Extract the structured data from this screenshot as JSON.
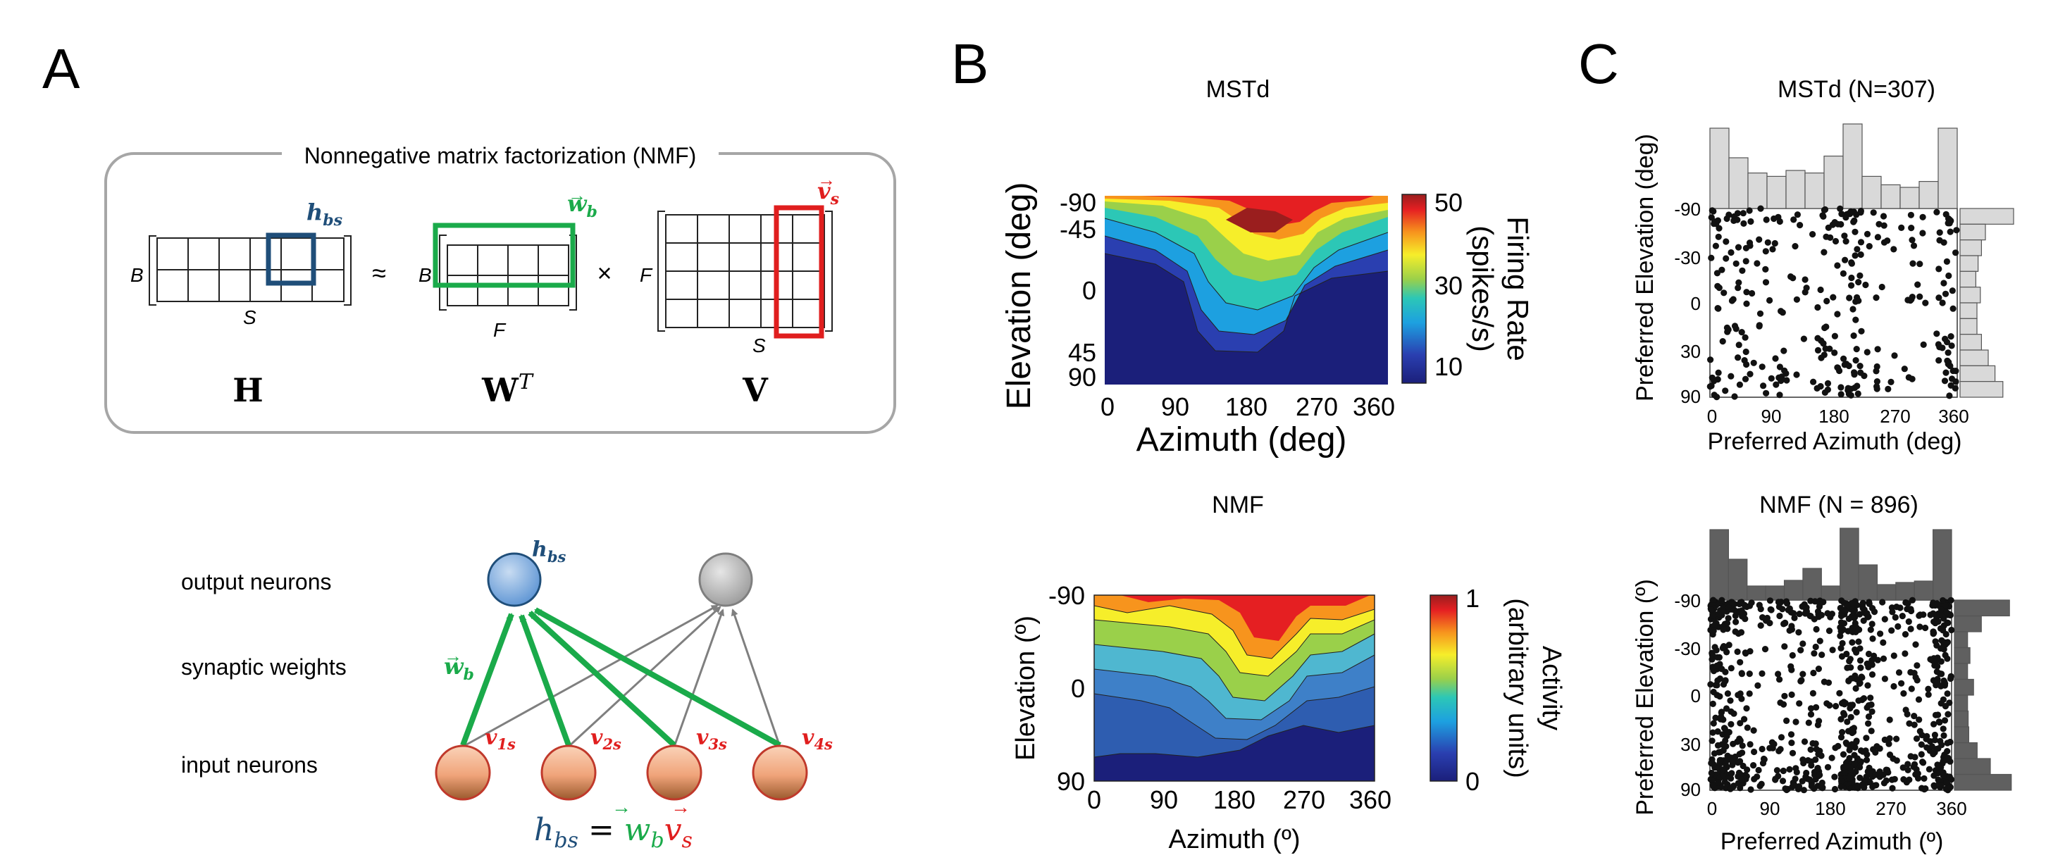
{
  "panel_labels": {
    "a": "A",
    "b": "B",
    "c": "C"
  },
  "nmf_box": {
    "title": "Nonnegative matrix factorization (NMF)",
    "approx_symbol": "≈",
    "times_symbol": "×",
    "H": {
      "label": "H",
      "row_dim": "B",
      "col_dim": "S",
      "highlight": "h",
      "highlight_sub": "bs"
    },
    "WT": {
      "label": "W",
      "label_sup": "T",
      "row_dim": "B",
      "col_dim": "F",
      "highlight": "w",
      "highlight_sub": "b"
    },
    "V": {
      "label": "V",
      "row_dim": "F",
      "col_dim": "S",
      "highlight": "v",
      "highlight_sub": "s"
    }
  },
  "network": {
    "row_labels": [
      "output neurons",
      "synaptic weights",
      "input neurons"
    ],
    "output_label": "h",
    "output_label_sub": "bs",
    "weight_label": "w",
    "weight_label_sub": "b",
    "inputs": [
      {
        "v": "v",
        "sub": "1s"
      },
      {
        "v": "v",
        "sub": "2s"
      },
      {
        "v": "v",
        "sub": "3s"
      },
      {
        "v": "v",
        "sub": "4s"
      }
    ],
    "equation": {
      "lhs": "h",
      "lhs_sub": "bs",
      "eq": " = ",
      "w": "w",
      "w_sub": "b",
      "v": "v",
      "v_sub": "s"
    }
  },
  "colors": {
    "h_blue": "#1f4e79",
    "w_green": "#1aaa4a",
    "v_red": "#e01e1e",
    "box_gray": "#a6a6a6",
    "hist_light": "#d9d9d9",
    "hist_dark": "#606060"
  },
  "chart_data": [
    {
      "id": "B-top",
      "type": "heatmap",
      "title": "MSTd",
      "xlabel": "Azimuth (deg)",
      "ylabel": "Elevation (deg)",
      "x_ticks": [
        "0",
        "90",
        "180",
        "270",
        "360"
      ],
      "y_ticks": [
        "-90",
        "-45",
        "0",
        "45",
        "90"
      ],
      "xlim": [
        0,
        360
      ],
      "ylim": [
        -90,
        90
      ],
      "colorbar": {
        "label_line1": "Firing Rate",
        "label_line2": "(spikes/s)",
        "ticks": [
          "50",
          "30",
          "10"
        ],
        "range": [
          0,
          50
        ]
      },
      "contour_bands_from_top": [
        "red",
        "orange",
        "yellow",
        "light-green",
        "teal",
        "cyan-blue",
        "dark-blue"
      ]
    },
    {
      "id": "B-bottom",
      "type": "heatmap",
      "title": "NMF",
      "xlabel": "Azimuth (º)",
      "ylabel": "Elevation (º)",
      "x_ticks": [
        "0",
        "90",
        "180",
        "270",
        "360"
      ],
      "y_ticks": [
        "-90",
        "0",
        "90"
      ],
      "xlim": [
        0,
        360
      ],
      "ylim": [
        -90,
        90
      ],
      "colorbar": {
        "label_line1": "Activity",
        "label_line2": "(arbitrary units)",
        "ticks": [
          "1",
          "0"
        ],
        "range": [
          0,
          1
        ]
      },
      "contour_bands_from_top": [
        "red",
        "orange",
        "yellow",
        "light-green",
        "teal",
        "blue",
        "dark-blue"
      ]
    },
    {
      "id": "C-top",
      "type": "scatter",
      "title": "MSTd (N=307)",
      "xlabel": "Preferred Azimuth (deg)",
      "ylabel": "Preferred Elevation (deg)",
      "x_ticks": [
        "0",
        "90",
        "180",
        "270",
        "360"
      ],
      "y_ticks": [
        "-90",
        "-30",
        "0",
        "30",
        "90"
      ],
      "xlim": [
        0,
        360
      ],
      "ylim": [
        -90,
        90
      ],
      "n_points": 307,
      "azimuth_histogram": [
        0.95,
        0.6,
        0.42,
        0.38,
        0.45,
        0.42,
        0.62,
        1.0,
        0.38,
        0.28,
        0.25,
        0.32,
        0.95
      ],
      "elevation_histogram": [
        0.95,
        0.45,
        0.38,
        0.32,
        0.28,
        0.36,
        0.3,
        0.3,
        0.38,
        0.5,
        0.62,
        0.76
      ]
    },
    {
      "id": "C-bottom",
      "type": "scatter",
      "title": "NMF (N = 896)",
      "xlabel": "Preferred Azimuth (º)",
      "ylabel": "Preferred Elevation (º)",
      "x_ticks": [
        "0",
        "90",
        "180",
        "270",
        "360"
      ],
      "y_ticks": [
        "-90",
        "-30",
        "0",
        "30",
        "90"
      ],
      "xlim": [
        0,
        360
      ],
      "ylim": [
        -90,
        90
      ],
      "n_points": 896,
      "azimuth_histogram": [
        1.0,
        0.58,
        0.2,
        0.2,
        0.28,
        0.45,
        0.2,
        1.02,
        0.5,
        0.22,
        0.25,
        0.27,
        1.0
      ],
      "elevation_histogram": [
        0.92,
        0.45,
        0.22,
        0.26,
        0.22,
        0.32,
        0.22,
        0.23,
        0.24,
        0.38,
        0.6,
        0.95
      ]
    }
  ]
}
